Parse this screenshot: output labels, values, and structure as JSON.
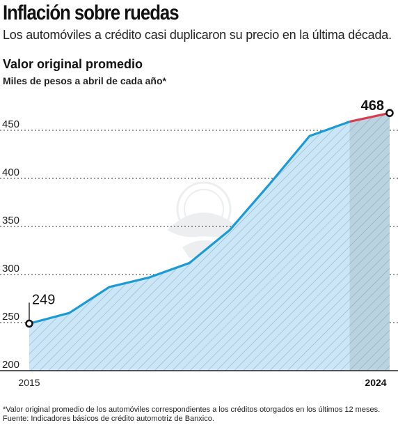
{
  "header": {
    "headline": "Inflación sobre ruedas",
    "subheadline": "Los automóviles a crédito casi duplicaron su precio en la última década."
  },
  "chart_data": {
    "type": "area",
    "title": "Valor original promedio",
    "subtitle": "Miles de pesos a abril de cada año*",
    "x": [
      2015,
      2016,
      2017,
      2018,
      2019,
      2020,
      2021,
      2022,
      2023,
      2024
    ],
    "x_tick_labels": [
      "2015",
      "2024"
    ],
    "values": [
      249,
      260,
      287,
      297,
      312,
      346,
      394,
      444,
      459,
      468
    ],
    "highlight": {
      "from_x": 2023,
      "to_x": 2024,
      "line_color": "#d93b4f"
    },
    "ylim": [
      200,
      468
    ],
    "y_ticks": [
      200,
      250,
      300,
      350,
      400,
      450
    ],
    "grid": true,
    "annotations": {
      "start_label": "249",
      "end_label": "468"
    },
    "colors": {
      "line": "#1a9ad6",
      "area": "#cbe7f7",
      "highlight_band": "#b7cfdc",
      "hatch": "#7a9aab"
    }
  },
  "footnote": "*Valor original promedio de los automóviles correspondientes a los créditos otorgados en los últimos 12 meses. Fuente: Indicadores básicos de crédito automotriz de Banxico."
}
